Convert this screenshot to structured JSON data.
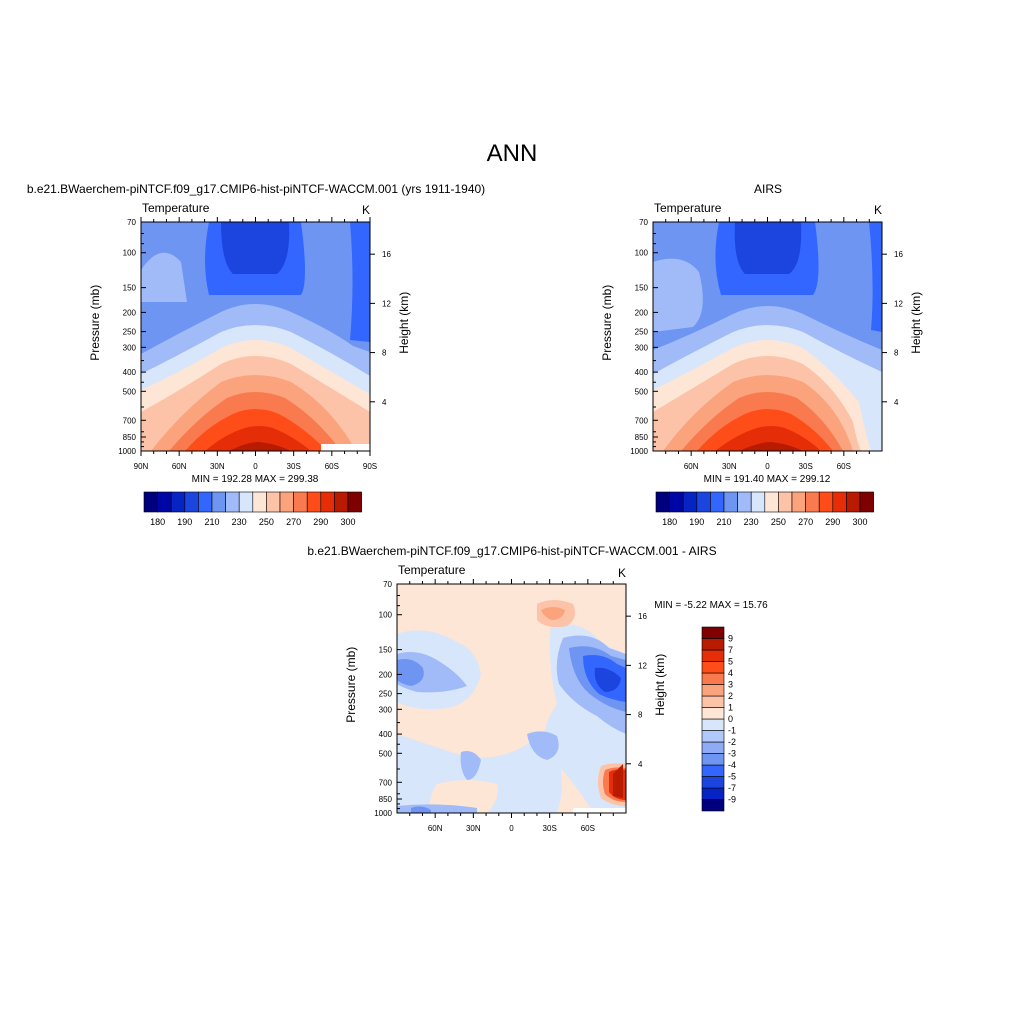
{
  "page": {
    "title": "ANN"
  },
  "chart_data": [
    {
      "type": "heatmap",
      "id": "model",
      "title": "b.e21.BWaerchem-piNTCF.f09_g17.CMIP6-hist-piNTCF-WACCM.001 (yrs 1911-1940)",
      "left_label": "Temperature",
      "right_label": "K",
      "xlabel": "",
      "ylabel": "Pressure (mb)",
      "ylabel_right": "Height (km)",
      "x_ticks": [
        "90N",
        "60N",
        "30N",
        "0",
        "30S",
        "60S",
        "90S"
      ],
      "y_ticks": [
        "70",
        "100",
        "150",
        "200",
        "250",
        "300",
        "400",
        "500",
        "700",
        "850",
        "1000"
      ],
      "y_ticks_right": [
        "4",
        "8",
        "12",
        "16"
      ],
      "stats": "MIN = 192.28  MAX = 299.38",
      "colorbar": {
        "orientation": "horizontal",
        "colors": [
          "#00007f",
          "#0005a6",
          "#0624c4",
          "#1c44df",
          "#3366ff",
          "#6f95f3",
          "#a1bbf8",
          "#d7e6fb",
          "#fde6d5",
          "#fcc3a8",
          "#fba37c",
          "#f97a4e",
          "#ff4d19",
          "#e52e08",
          "#b81b00",
          "#7f0000"
        ],
        "labels": [
          "180",
          "190",
          "210",
          "230",
          "250",
          "270",
          "290",
          "300"
        ]
      }
    },
    {
      "type": "heatmap",
      "id": "obs",
      "title": "AIRS",
      "left_label": "Temperature",
      "right_label": "K",
      "xlabel": "",
      "ylabel": "Pressure (mb)",
      "ylabel_right": "Height (km)",
      "x_ticks": [
        "60N",
        "30N",
        "0",
        "30S",
        "60S"
      ],
      "y_ticks": [
        "70",
        "100",
        "150",
        "200",
        "250",
        "300",
        "400",
        "500",
        "700",
        "850",
        "1000"
      ],
      "y_ticks_right": [
        "4",
        "8",
        "12",
        "16"
      ],
      "stats": "MIN = 191.40  MAX = 299.12",
      "colorbar": {
        "orientation": "horizontal",
        "colors": [
          "#00007f",
          "#0005a6",
          "#0624c4",
          "#1c44df",
          "#3366ff",
          "#6f95f3",
          "#a1bbf8",
          "#d7e6fb",
          "#fde6d5",
          "#fcc3a8",
          "#fba37c",
          "#f97a4e",
          "#ff4d19",
          "#e52e08",
          "#b81b00",
          "#7f0000"
        ],
        "labels": [
          "180",
          "190",
          "210",
          "230",
          "250",
          "270",
          "290",
          "300"
        ]
      }
    },
    {
      "type": "heatmap",
      "id": "diff",
      "title": "b.e21.BWaerchem-piNTCF.f09_g17.CMIP6-hist-piNTCF-WACCM.001 - AIRS",
      "left_label": "Temperature",
      "right_label": "K",
      "xlabel": "",
      "ylabel": "Pressure (mb)",
      "ylabel_right": "Height (km)",
      "x_ticks": [
        "60N",
        "30N",
        "0",
        "30S",
        "60S"
      ],
      "y_ticks": [
        "70",
        "100",
        "150",
        "200",
        "250",
        "300",
        "400",
        "500",
        "700",
        "850",
        "1000"
      ],
      "y_ticks_right": [
        "4",
        "8",
        "12",
        "16"
      ],
      "stats": "MIN =  -5.22  MAX =  15.76",
      "colorbar": {
        "orientation": "vertical",
        "colors": [
          "#00007f",
          "#0624c4",
          "#1c44df",
          "#3366ff",
          "#6f95f3",
          "#8fabf6",
          "#b1c8fa",
          "#d7e6fb",
          "#fde6d5",
          "#fcc3a8",
          "#fba37c",
          "#f97a4e",
          "#ff4d19",
          "#e52e08",
          "#b81b00",
          "#7f0000"
        ],
        "labels": [
          "-9",
          "-7",
          "-5",
          "-4",
          "-3",
          "-2",
          "-1",
          "0",
          "1",
          "2",
          "3",
          "4",
          "5",
          "7",
          "9"
        ]
      }
    }
  ]
}
